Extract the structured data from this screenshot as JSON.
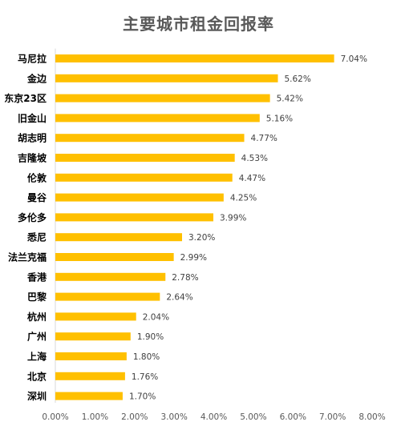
{
  "chart_data": {
    "type": "bar",
    "orientation": "horizontal",
    "title": "主要城市租金回报率",
    "xlabel": "",
    "ylabel": "",
    "categories": [
      "马尼拉",
      "金边",
      "东京23区",
      "旧金山",
      "胡志明",
      "吉隆坡",
      "伦敦",
      "曼谷",
      "多伦多",
      "悉尼",
      "法兰克福",
      "香港",
      "巴黎",
      "杭州",
      "广州",
      "上海",
      "北京",
      "深圳"
    ],
    "values": [
      7.04,
      5.62,
      5.42,
      5.16,
      4.77,
      4.53,
      4.47,
      4.25,
      3.99,
      3.2,
      2.99,
      2.78,
      2.64,
      2.04,
      1.9,
      1.8,
      1.76,
      1.7
    ],
    "value_labels": [
      "7.04%",
      "5.62%",
      "5.42%",
      "5.16%",
      "4.77%",
      "4.53%",
      "4.47%",
      "4.25%",
      "3.99%",
      "3.20%",
      "2.99%",
      "2.78%",
      "2.64%",
      "2.04%",
      "1.90%",
      "1.80%",
      "1.76%",
      "1.70%"
    ],
    "xlim": [
      0,
      8
    ],
    "x_ticks": [
      0,
      1,
      2,
      3,
      4,
      5,
      6,
      7,
      8
    ],
    "x_tick_labels": [
      "0.00%",
      "1.00%",
      "2.00%",
      "3.00%",
      "4.00%",
      "5.00%",
      "6.00%",
      "7.00%",
      "8.00%"
    ],
    "grid": false,
    "legend": "none",
    "colors": {
      "bar": "#FFC000",
      "title": "#595959",
      "category_label": "#000000",
      "value_label": "#404040",
      "tick_label": "#595959",
      "axis": "#D9D9D9"
    }
  }
}
